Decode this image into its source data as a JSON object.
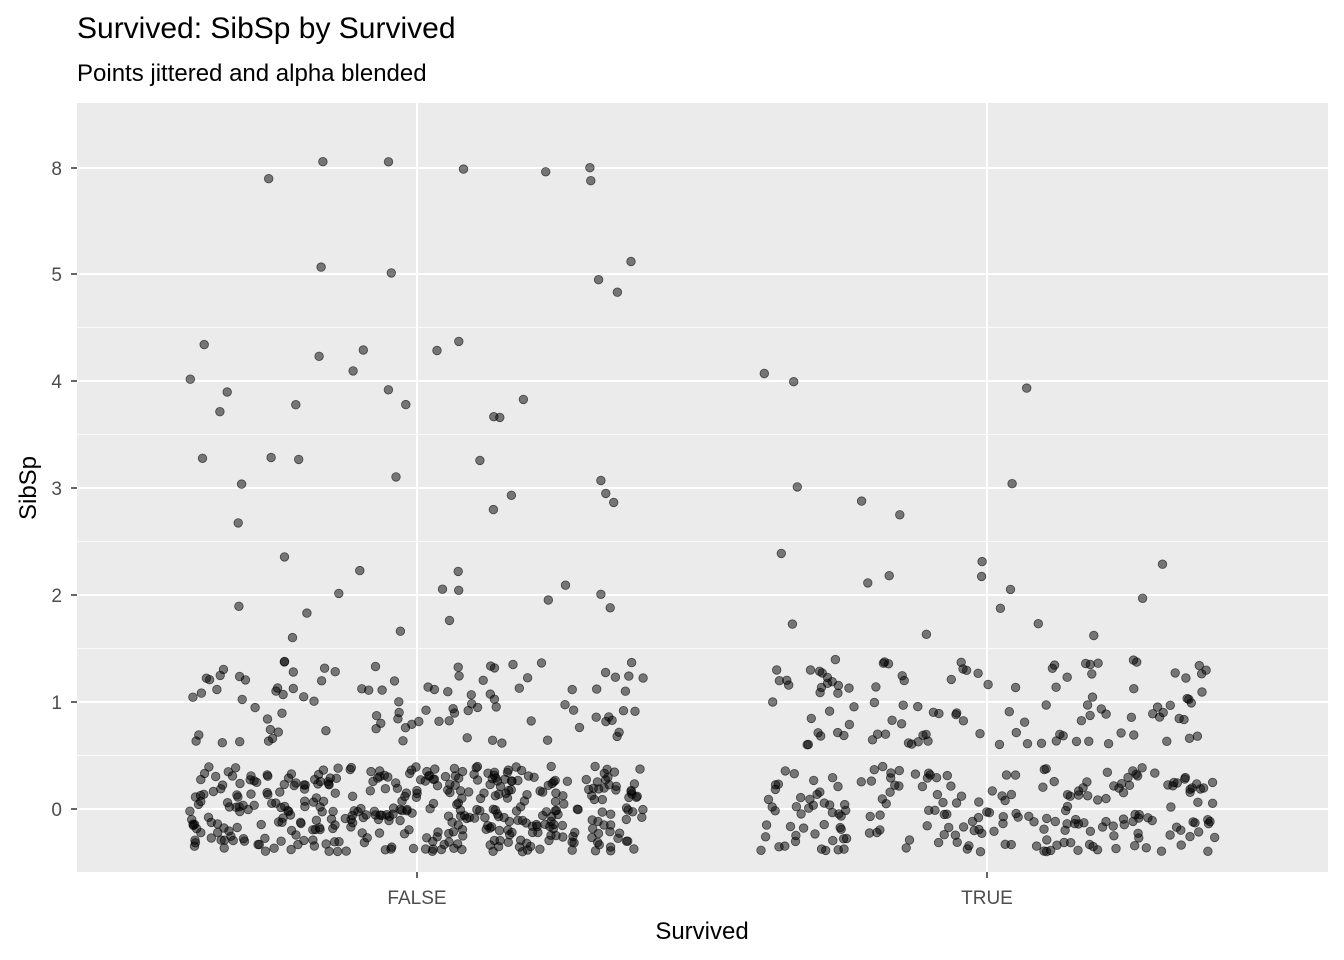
{
  "chart_data": {
    "type": "scatter",
    "title": "Survived: SibSp by Survived",
    "subtitle": "Points jittered and alpha blended",
    "xlabel": "Survived",
    "ylabel": "SibSp",
    "categories": [
      "FALSE",
      "TRUE"
    ],
    "y_ticks": [
      0,
      1,
      2,
      3,
      4,
      5,
      8
    ],
    "y_tick_labels": [
      "0",
      "1",
      "2",
      "3",
      "4",
      "5",
      "8"
    ],
    "grid": true,
    "panel_background": "#ebebeb",
    "point_color": "#000000",
    "point_alpha": 0.5,
    "jitter_width": 0.4,
    "jitter_height": 0.4,
    "groups": [
      {
        "category": "FALSE",
        "counts": {
          "0": 398,
          "1": 97,
          "2": 15,
          "3": 12,
          "4": 15,
          "5": 5,
          "8": 7
        }
      },
      {
        "category": "TRUE",
        "counts": {
          "0": 210,
          "1": 112,
          "2": 13,
          "3": 4,
          "4": 3
        }
      }
    ]
  }
}
